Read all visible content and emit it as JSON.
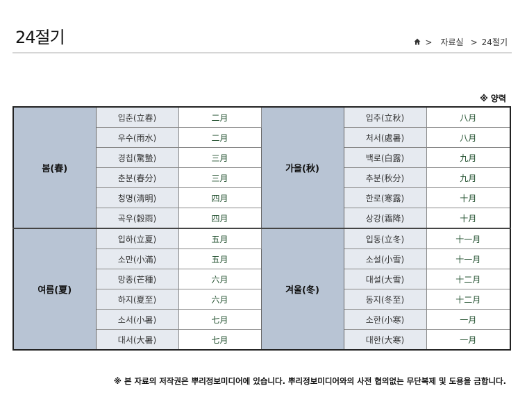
{
  "header": {
    "title": "24절기",
    "breadcrumb": {
      "home_icon": "home-icon",
      "sep": ">",
      "items": [
        "자료실",
        "24절기"
      ]
    }
  },
  "unit_note": "※ 양력",
  "groups": [
    {
      "left": {
        "season": "봄(春)",
        "terms": [
          [
            "입춘(立春)",
            "二月"
          ],
          [
            "우수(雨水)",
            "二月"
          ],
          [
            "경칩(驚蟄)",
            "三月"
          ],
          [
            "춘분(春分)",
            "三月"
          ],
          [
            "청명(淸明)",
            "四月"
          ],
          [
            "곡우(穀雨)",
            "四月"
          ]
        ]
      },
      "right": {
        "season": "가을(秋)",
        "terms": [
          [
            "입추(立秋)",
            "八月"
          ],
          [
            "처서(處暑)",
            "八月"
          ],
          [
            "백로(白露)",
            "九月"
          ],
          [
            "추분(秋分)",
            "九月"
          ],
          [
            "한로(寒露)",
            "十月"
          ],
          [
            "상강(霜降)",
            "十月"
          ]
        ]
      }
    },
    {
      "left": {
        "season": "여름(夏)",
        "terms": [
          [
            "입하(立夏)",
            "五月"
          ],
          [
            "소만(小滿)",
            "五月"
          ],
          [
            "망종(芒種)",
            "六月"
          ],
          [
            "하지(夏至)",
            "六月"
          ],
          [
            "소서(小暑)",
            "七月"
          ],
          [
            "대서(大暑)",
            "七月"
          ]
        ]
      },
      "right": {
        "season": "겨울(冬)",
        "terms": [
          [
            "입동(立冬)",
            "十一月"
          ],
          [
            "소설(小雪)",
            "十一月"
          ],
          [
            "대설(大雪)",
            "十二月"
          ],
          [
            "동지(冬至)",
            "十二月"
          ],
          [
            "소한(小寒)",
            "一月"
          ],
          [
            "대한(大寒)",
            "一月"
          ]
        ]
      }
    }
  ],
  "footer": "※ 본 자료의 저작권은 뿌리정보미디어에 있습니다. 뿌리정보미디어와의 사전 협의없는 무단복제 및 도용을 금합니다.",
  "colors": {
    "season_bg": "#b8c4d4",
    "term_bg": "#e6eaf0",
    "month_text": "#1e4d2b"
  }
}
